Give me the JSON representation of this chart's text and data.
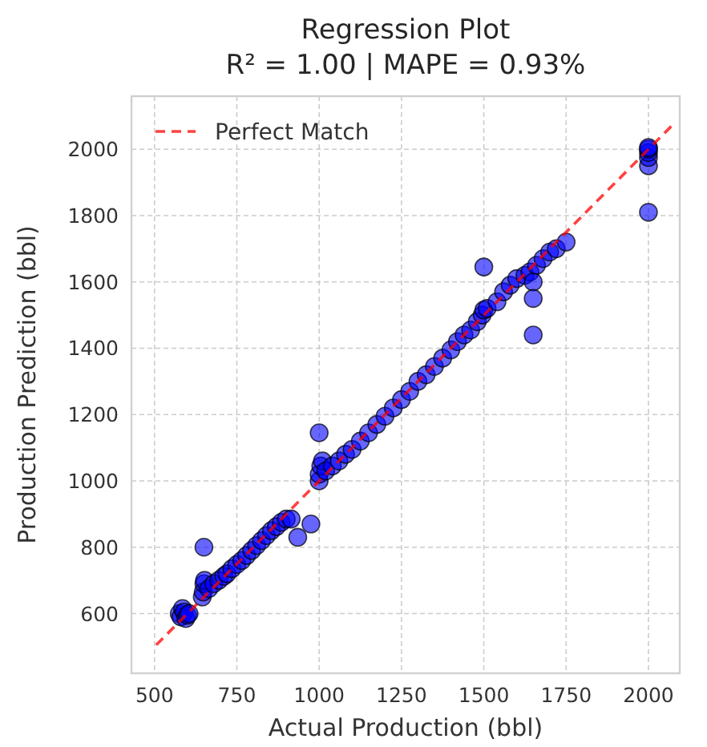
{
  "chart_data": {
    "type": "scatter",
    "title": "Regression Plot",
    "subtitle": "R² = 1.00 | MAPE = 0.93%",
    "xlabel": "Actual Production (bbl)",
    "ylabel": "Production Prediction (bbl)",
    "xlim": [
      430,
      2095
    ],
    "ylim": [
      420,
      2160
    ],
    "xticks": [
      500,
      750,
      1000,
      1250,
      1500,
      1750,
      2000
    ],
    "yticks": [
      600,
      800,
      1000,
      1200,
      1400,
      1600,
      1800,
      2000
    ],
    "grid": true,
    "legend": "top left",
    "series": [
      {
        "color": "#0000ff",
        "marker": "circle",
        "x": [
          575,
          580,
          585,
          590,
          595,
          600,
          605,
          645,
          648,
          650,
          652,
          650,
          665,
          680,
          695,
          710,
          720,
          735,
          750,
          765,
          780,
          795,
          810,
          825,
          840,
          855,
          870,
          885,
          900,
          915,
          935,
          975,
          1000,
          1000,
          1005,
          1010,
          1000,
          1020,
          1040,
          1060,
          1080,
          1100,
          1125,
          1150,
          1175,
          1200,
          1225,
          1250,
          1275,
          1300,
          1325,
          1350,
          1375,
          1400,
          1420,
          1440,
          1460,
          1480,
          1495,
          1500,
          1500,
          1510,
          1540,
          1560,
          1580,
          1600,
          1625,
          1640,
          1650,
          1650,
          1650,
          1660,
          1680,
          1700,
          1720,
          1750,
          2000,
          2000,
          2000,
          2000,
          2000,
          2000
        ],
        "values": [
          600,
          590,
          615,
          605,
          585,
          595,
          600,
          650,
          665,
          690,
          700,
          800,
          675,
          690,
          700,
          712,
          720,
          735,
          748,
          760,
          775,
          790,
          805,
          820,
          835,
          850,
          862,
          875,
          885,
          885,
          830,
          870,
          1000,
          1020,
          1045,
          1060,
          1145,
          1030,
          1045,
          1060,
          1080,
          1095,
          1120,
          1145,
          1170,
          1195,
          1220,
          1245,
          1270,
          1300,
          1320,
          1345,
          1370,
          1395,
          1420,
          1440,
          1455,
          1480,
          1500,
          1515,
          1645,
          1520,
          1540,
          1570,
          1590,
          1610,
          1620,
          1630,
          1600,
          1550,
          1440,
          1650,
          1670,
          1690,
          1700,
          1720,
          1810,
          1950,
          1975,
          1990,
          2000,
          2005
        ]
      },
      {
        "type": "line",
        "name": "Perfect Match",
        "color": "#ff0000",
        "line_style": "dashed",
        "x": [
          505,
          2080
        ],
        "values": [
          505,
          2080
        ]
      }
    ]
  }
}
